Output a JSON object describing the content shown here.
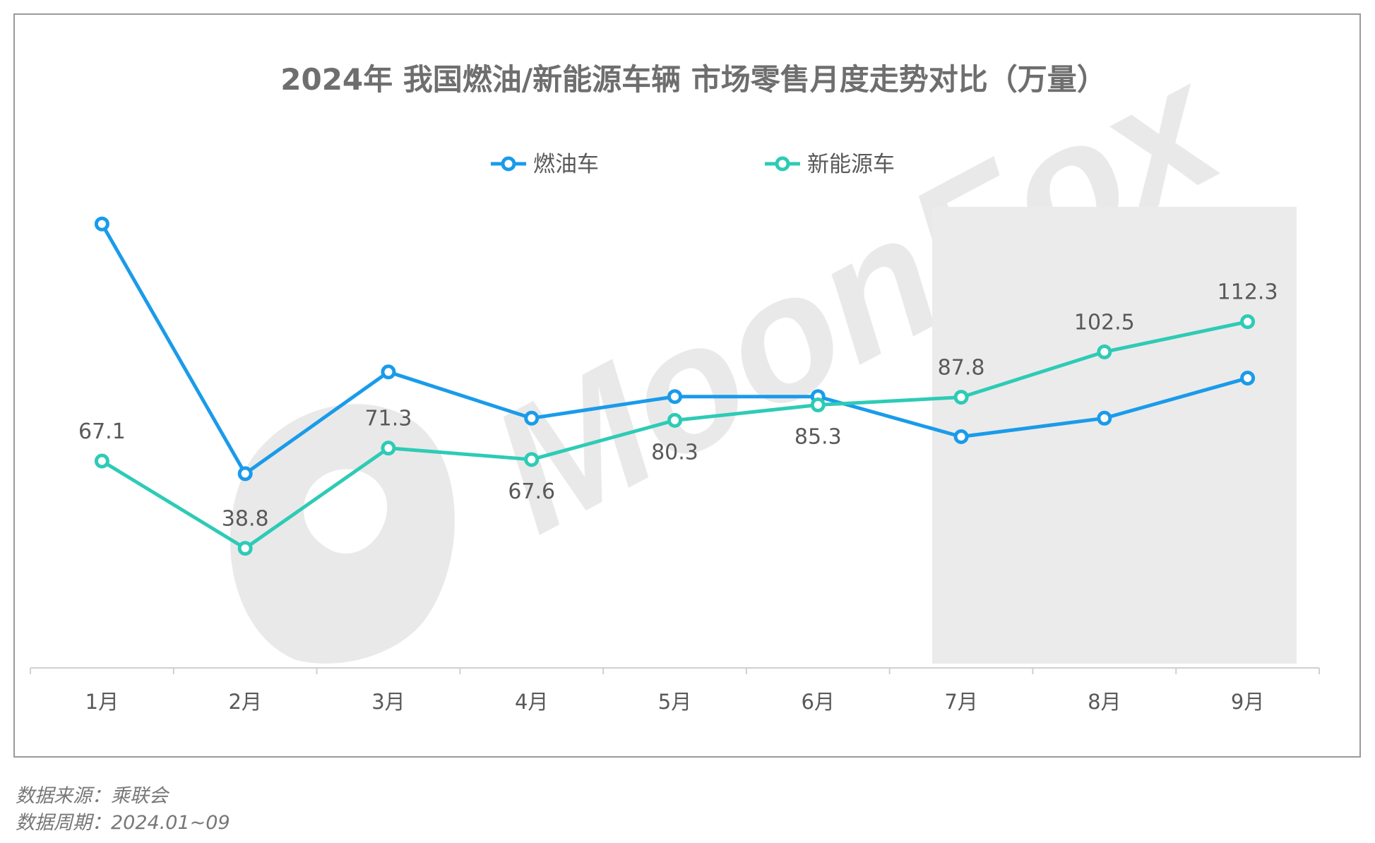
{
  "chart_data": {
    "type": "line",
    "title": "2024年 我国燃油/新能源车辆 市场零售月度走势对比（万量）",
    "categories": [
      "1月",
      "2月",
      "3月",
      "4月",
      "5月",
      "6月",
      "7月",
      "8月",
      "9月"
    ],
    "series": [
      {
        "name": "燃油车",
        "color": "#1a9bea",
        "values": [
          144,
          63,
          96,
          81,
          88,
          88,
          75,
          81,
          94
        ],
        "labels_shown": false
      },
      {
        "name": "新能源车",
        "color": "#2ecbb6",
        "values": [
          67.1,
          38.8,
          71.3,
          67.6,
          80.3,
          85.3,
          87.8,
          102.5,
          112.3
        ],
        "labels_shown": true
      }
    ],
    "data_labels": [
      "67.1",
      "38.8",
      "71.3",
      "67.6",
      "80.3",
      "85.3",
      "87.8",
      "102.5",
      "112.3"
    ],
    "highlight_categories": [
      "7月",
      "8月",
      "9月"
    ],
    "legend_position": "top-center",
    "grid": false,
    "ylim": [
      0,
      180
    ],
    "watermark": "MoonFox"
  },
  "footer": {
    "source": "数据来源：乘联会",
    "period": "数据周期：2024.01~09"
  }
}
